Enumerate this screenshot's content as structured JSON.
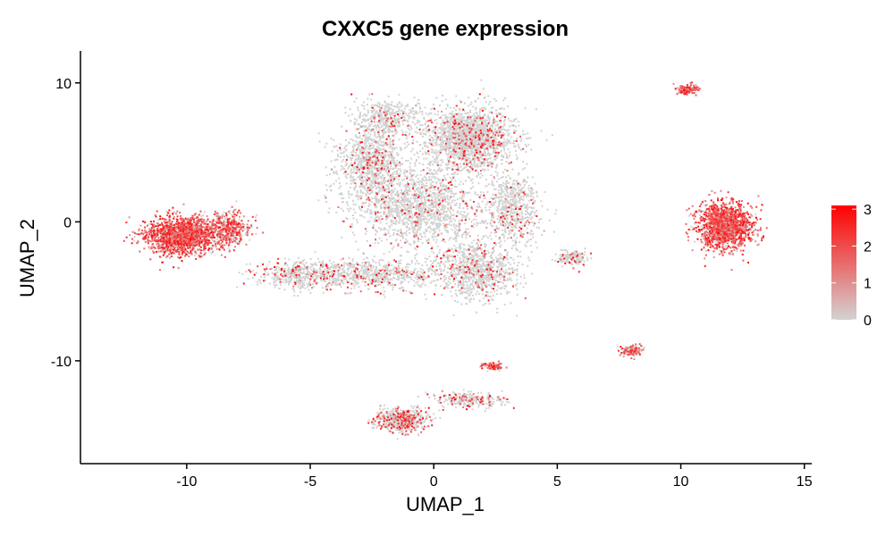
{
  "chart_data": {
    "type": "scatter",
    "title": "CXXC5 gene expression",
    "xlabel": "UMAP_1",
    "ylabel": "UMAP_2",
    "xlim": [
      -14.3,
      15.3
    ],
    "ylim": [
      -17.4,
      12.3
    ],
    "xticks": [
      -10,
      -5,
      0,
      5,
      10,
      15
    ],
    "yticks": [
      -10,
      0,
      10
    ],
    "legend": {
      "position": "right",
      "ticks": [
        0,
        1,
        2,
        3
      ],
      "color_low": "#d3d3d3",
      "color_high": "#ff0000",
      "range": [
        0,
        3.1
      ]
    },
    "clusters": [
      {
        "cx": 1.5,
        "cy": 6.0,
        "sx": 1.6,
        "sy": 2.0,
        "n": 1800,
        "mean_expr": 0.25
      },
      {
        "cx": -2.5,
        "cy": 4.0,
        "sx": 1.3,
        "sy": 2.6,
        "n": 1000,
        "mean_expr": 0.25
      },
      {
        "cx": -0.5,
        "cy": 1.0,
        "sx": 2.2,
        "sy": 2.6,
        "n": 1400,
        "mean_expr": 0.2
      },
      {
        "cx": -1.8,
        "cy": 7.5,
        "sx": 1.3,
        "sy": 1.1,
        "n": 400,
        "mean_expr": 0.2
      },
      {
        "cx": 3.2,
        "cy": 1.0,
        "sx": 1.0,
        "sy": 2.2,
        "n": 600,
        "mean_expr": 0.2
      },
      {
        "cx": 1.8,
        "cy": -3.5,
        "sx": 1.5,
        "sy": 1.9,
        "n": 900,
        "mean_expr": 0.25
      },
      {
        "cx": -2.5,
        "cy": -3.8,
        "sx": 2.8,
        "sy": 1.0,
        "n": 700,
        "mean_expr": 0.3
      },
      {
        "cx": -5.5,
        "cy": -3.8,
        "sx": 1.6,
        "sy": 0.9,
        "n": 400,
        "mean_expr": 0.45
      },
      {
        "cx": -10.3,
        "cy": -1.0,
        "sx": 1.3,
        "sy": 1.2,
        "n": 1500,
        "mean_expr": 1.7
      },
      {
        "cx": -8.3,
        "cy": -0.5,
        "sx": 0.8,
        "sy": 1.1,
        "n": 450,
        "mean_expr": 1.3
      },
      {
        "cx": 11.8,
        "cy": -0.3,
        "sx": 1.0,
        "sy": 1.5,
        "n": 1400,
        "mean_expr": 1.8
      },
      {
        "cx": 10.3,
        "cy": 9.5,
        "sx": 0.4,
        "sy": 0.3,
        "n": 130,
        "mean_expr": 2.0
      },
      {
        "cx": 8.0,
        "cy": -9.3,
        "sx": 0.4,
        "sy": 0.35,
        "n": 150,
        "mean_expr": 0.8
      },
      {
        "cx": 5.6,
        "cy": -2.6,
        "sx": 0.5,
        "sy": 0.5,
        "n": 150,
        "mean_expr": 0.3
      },
      {
        "cx": -1.3,
        "cy": -14.3,
        "sx": 1.0,
        "sy": 0.8,
        "n": 550,
        "mean_expr": 0.6
      },
      {
        "cx": 1.5,
        "cy": -12.8,
        "sx": 1.3,
        "sy": 0.5,
        "n": 250,
        "mean_expr": 0.5
      },
      {
        "cx": 2.4,
        "cy": -10.4,
        "sx": 0.4,
        "sy": 0.25,
        "n": 80,
        "mean_expr": 1.4
      }
    ]
  }
}
